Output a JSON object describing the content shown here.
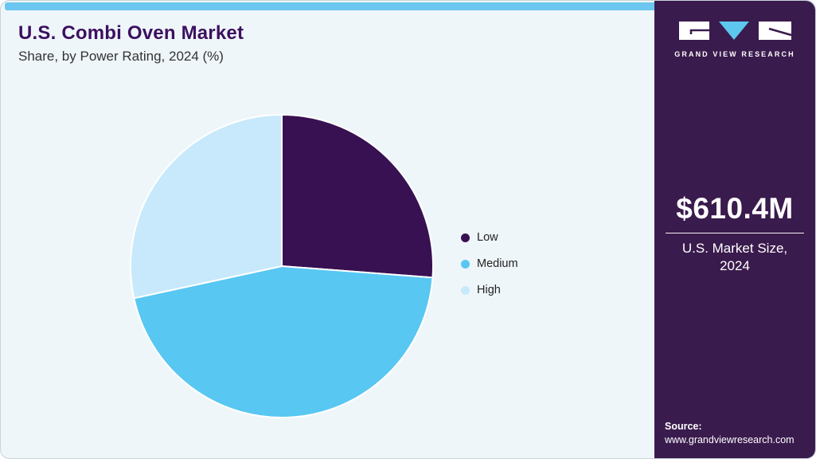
{
  "header": {
    "title": "U.S. Combi Oven Market",
    "subtitle": "Share, by Power Rating, 2024 (%)"
  },
  "chart_data": {
    "type": "pie",
    "title": "U.S. Combi Oven Market Share, by Power Rating, 2024 (%)",
    "categories": [
      "Low",
      "Medium",
      "High"
    ],
    "values": [
      26.2,
      45.4,
      28.4
    ],
    "unit": "%",
    "colors": [
      "#371152",
      "#58c7f2",
      "#c7e9fb"
    ],
    "start_angle_deg": 0,
    "direction": "clockwise",
    "legend_position": "right",
    "data_labels": false
  },
  "sidebar": {
    "brand": "GRAND VIEW RESEARCH",
    "market_size_value": "$610.4M",
    "market_size_label": "U.S. Market Size,\n2024",
    "source_label": "Source:",
    "source_url": "www.grandviewresearch.com"
  },
  "icons": {
    "logo": "gvr-logo-icon"
  },
  "theme": {
    "accent_bar": "#6bc7ef",
    "card_bg": "#eff6fa",
    "sidebar_bg": "#3a1b4d",
    "title_color": "#3c1060",
    "text_color": "#333333",
    "logo_triangle": "#5ec7ee"
  }
}
